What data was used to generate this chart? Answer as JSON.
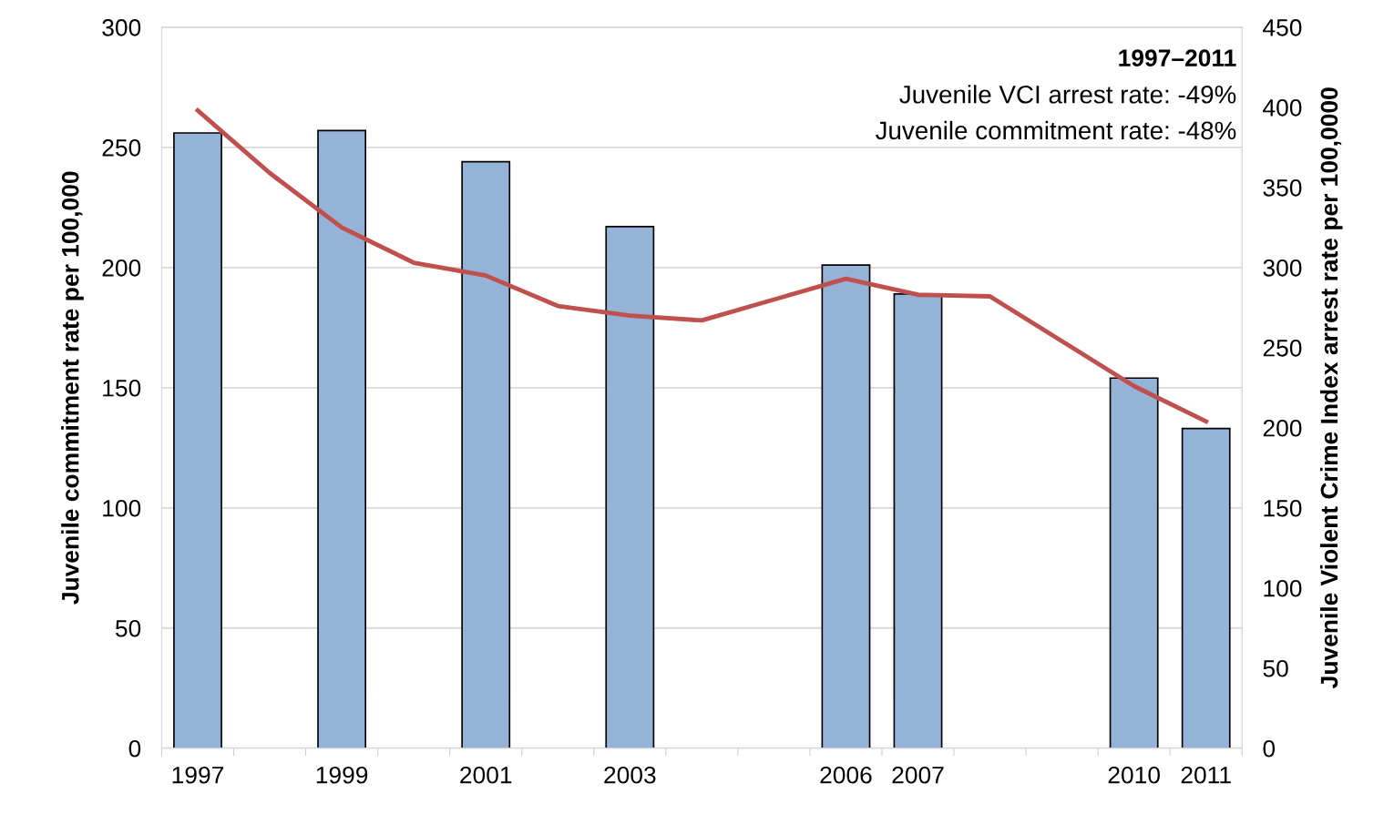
{
  "chart_data": {
    "type": "bar",
    "categories": [
      "1997",
      null,
      "1999",
      null,
      "2001",
      null,
      "2003",
      null,
      null,
      "2006",
      "2007",
      null,
      null,
      "2010",
      "2011"
    ],
    "series": [
      {
        "color": "#95b3d7",
        "values": [
          256,
          null,
          257,
          null,
          244,
          null,
          217,
          null,
          null,
          201,
          189,
          null,
          null,
          154,
          133
        ]
      },
      {
        "type": "line",
        "axis": "y2",
        "color": "#c0504d",
        "values": [
          398,
          359,
          325,
          303,
          295,
          276,
          270,
          267,
          280,
          293,
          283,
          282,
          254,
          226,
          204
        ]
      }
    ],
    "ylabel": "Juvenile commitment rate per 100,000",
    "y2label": "Juvenile Violent Crime Index arrest rate per 100,0000",
    "ylim": [
      0,
      300
    ],
    "yticks": [
      0,
      50,
      100,
      150,
      200,
      250,
      300
    ],
    "y2lim": [
      0,
      450
    ],
    "y2ticks": [
      0,
      50,
      100,
      150,
      200,
      250,
      300,
      350,
      400,
      450
    ],
    "annotations": [
      "1997–2011",
      "Juvenile VCI arrest rate: -49%",
      "Juvenile commitment rate: -48%"
    ],
    "grid": "y",
    "marker": "none",
    "line_style": "solid"
  }
}
